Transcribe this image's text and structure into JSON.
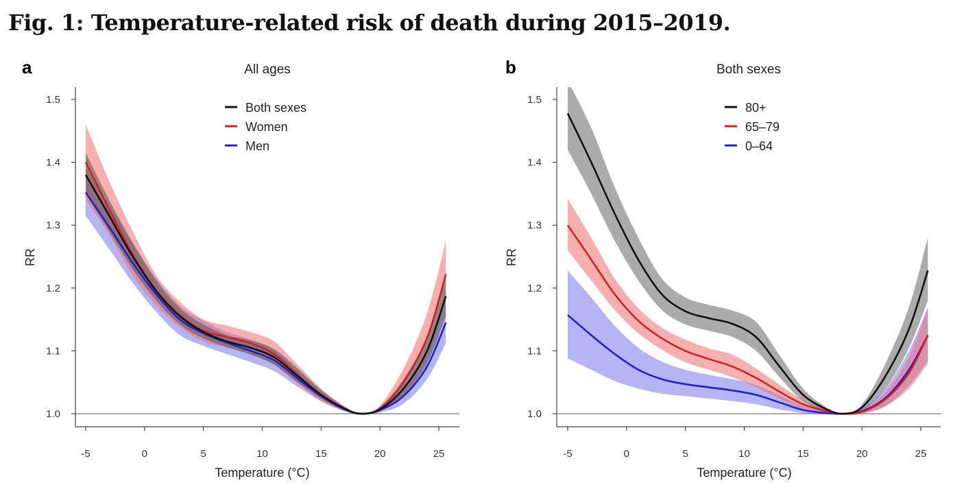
{
  "figure_title": "Fig. 1: Temperature-related risk of death during 2015–2019.",
  "chart_data": [
    {
      "type": "line",
      "panel_label": "a",
      "title": "All ages",
      "xlabel": "Temperature (°C)",
      "ylabel": "RR",
      "xlim": [
        -5.5,
        27.5
      ],
      "ylim": [
        0.98,
        1.52
      ],
      "xticks": [
        -5,
        0,
        5,
        10,
        15,
        20,
        25
      ],
      "yticks": [
        1.0,
        1.1,
        1.2,
        1.3,
        1.4,
        1.5
      ],
      "xtick_labels": [
        "-5",
        "0",
        "5",
        "10",
        "15",
        "20",
        "25"
      ],
      "ytick_labels": [
        "1.0",
        "1.1",
        "1.2",
        "1.3",
        "1.4",
        "1.5"
      ],
      "grid": false,
      "reference_line_y": 1.0,
      "legend_position": "top-center",
      "x": [
        -5,
        -3,
        -1,
        1,
        3,
        5,
        7,
        9,
        11,
        13,
        15,
        17,
        18.4,
        20,
        22,
        24,
        25.6
      ],
      "series": [
        {
          "name": "Both sexes",
          "color": "#111111",
          "band_color": "#555555",
          "values": [
            1.38,
            1.315,
            1.25,
            1.195,
            1.155,
            1.13,
            1.115,
            1.105,
            1.09,
            1.06,
            1.03,
            1.008,
            1.0,
            1.007,
            1.04,
            1.1,
            1.187
          ],
          "lower": [
            1.35,
            1.29,
            1.23,
            1.18,
            1.142,
            1.12,
            1.106,
            1.094,
            1.078,
            1.05,
            1.024,
            1.005,
            1.0,
            1.004,
            1.028,
            1.08,
            1.155
          ],
          "upper": [
            1.415,
            1.34,
            1.272,
            1.212,
            1.168,
            1.142,
            1.125,
            1.117,
            1.103,
            1.072,
            1.038,
            1.011,
            1.0,
            1.011,
            1.055,
            1.125,
            1.225
          ]
        },
        {
          "name": "Women",
          "color": "#d42020",
          "band_color": "#f07070",
          "values": [
            1.4,
            1.325,
            1.253,
            1.196,
            1.157,
            1.132,
            1.122,
            1.112,
            1.095,
            1.062,
            1.03,
            1.008,
            1.0,
            1.008,
            1.05,
            1.12,
            1.222
          ],
          "lower": [
            1.34,
            1.285,
            1.22,
            1.172,
            1.138,
            1.115,
            1.105,
            1.095,
            1.078,
            1.048,
            1.02,
            1.004,
            1.0,
            1.003,
            1.03,
            1.088,
            1.175
          ],
          "upper": [
            1.46,
            1.37,
            1.29,
            1.22,
            1.178,
            1.15,
            1.14,
            1.13,
            1.115,
            1.078,
            1.04,
            1.012,
            1.0,
            1.013,
            1.072,
            1.16,
            1.275
          ]
        },
        {
          "name": "Men",
          "color": "#2020d0",
          "band_color": "#7878ee",
          "values": [
            1.352,
            1.297,
            1.24,
            1.19,
            1.15,
            1.128,
            1.113,
            1.1,
            1.085,
            1.056,
            1.028,
            1.007,
            1.0,
            1.006,
            1.028,
            1.075,
            1.145
          ],
          "lower": [
            1.315,
            1.262,
            1.208,
            1.162,
            1.125,
            1.108,
            1.095,
            1.082,
            1.068,
            1.043,
            1.02,
            1.004,
            1.0,
            1.002,
            1.016,
            1.055,
            1.112
          ],
          "upper": [
            1.39,
            1.332,
            1.27,
            1.215,
            1.172,
            1.148,
            1.13,
            1.118,
            1.1,
            1.068,
            1.036,
            1.011,
            1.0,
            1.01,
            1.04,
            1.095,
            1.178
          ]
        }
      ]
    },
    {
      "type": "line",
      "panel_label": "b",
      "title": "Both sexes",
      "xlabel": "Temperature (°C)",
      "ylabel": "RR",
      "xlim": [
        -5.5,
        27.5
      ],
      "ylim": [
        0.98,
        1.52
      ],
      "xticks": [
        -5,
        0,
        5,
        10,
        15,
        20,
        25
      ],
      "yticks": [
        1.0,
        1.1,
        1.2,
        1.3,
        1.4,
        1.5
      ],
      "xtick_labels": [
        "-5",
        "0",
        "5",
        "10",
        "15",
        "20",
        "25"
      ],
      "ytick_labels": [
        "1.0",
        "1.1",
        "1.2",
        "1.3",
        "1.4",
        "1.5"
      ],
      "grid": false,
      "reference_line_y": 1.0,
      "legend_position": "top-center",
      "x": [
        -5,
        -3,
        -1,
        1,
        3,
        5,
        7,
        9,
        11,
        13,
        15,
        17,
        18.4,
        20,
        22,
        24,
        25.6
      ],
      "series": [
        {
          "name": "80+",
          "color": "#111111",
          "band_color": "#666666",
          "values": [
            1.478,
            1.4,
            1.318,
            1.245,
            1.19,
            1.163,
            1.152,
            1.143,
            1.122,
            1.075,
            1.03,
            1.007,
            1.0,
            1.01,
            1.06,
            1.135,
            1.228
          ],
          "lower": [
            1.42,
            1.35,
            1.275,
            1.212,
            1.165,
            1.142,
            1.132,
            1.122,
            1.1,
            1.058,
            1.02,
            1.004,
            1.0,
            1.005,
            1.04,
            1.105,
            1.18
          ],
          "upper": [
            1.53,
            1.455,
            1.36,
            1.28,
            1.215,
            1.185,
            1.173,
            1.164,
            1.146,
            1.093,
            1.04,
            1.01,
            1.0,
            1.015,
            1.08,
            1.17,
            1.28
          ]
        },
        {
          "name": "65–79",
          "color": "#d42020",
          "band_color": "#f07070",
          "values": [
            1.3,
            1.245,
            1.19,
            1.148,
            1.12,
            1.1,
            1.087,
            1.075,
            1.057,
            1.035,
            1.015,
            1.004,
            1.0,
            1.003,
            1.023,
            1.065,
            1.125
          ],
          "lower": [
            1.26,
            1.212,
            1.165,
            1.128,
            1.102,
            1.082,
            1.07,
            1.058,
            1.042,
            1.024,
            1.008,
            1.002,
            1.0,
            1.0,
            1.012,
            1.04,
            1.08
          ],
          "upper": [
            1.342,
            1.28,
            1.215,
            1.168,
            1.137,
            1.118,
            1.104,
            1.094,
            1.072,
            1.046,
            1.022,
            1.006,
            1.0,
            1.006,
            1.034,
            1.09,
            1.168
          ]
        },
        {
          "name": "0–64",
          "color": "#2020d0",
          "band_color": "#7878ee",
          "values": [
            1.157,
            1.125,
            1.095,
            1.07,
            1.055,
            1.047,
            1.042,
            1.037,
            1.03,
            1.018,
            1.006,
            1.001,
            1.0,
            1.004,
            1.025,
            1.07,
            1.125
          ],
          "lower": [
            1.088,
            1.07,
            1.052,
            1.04,
            1.032,
            1.028,
            1.024,
            1.02,
            1.015,
            1.007,
            1.001,
            0.999,
            1.0,
            1.001,
            1.012,
            1.045,
            1.085
          ],
          "upper": [
            1.228,
            1.185,
            1.14,
            1.105,
            1.083,
            1.07,
            1.062,
            1.055,
            1.046,
            1.03,
            1.012,
            1.003,
            1.0,
            1.008,
            1.04,
            1.1,
            1.17
          ]
        }
      ]
    }
  ]
}
